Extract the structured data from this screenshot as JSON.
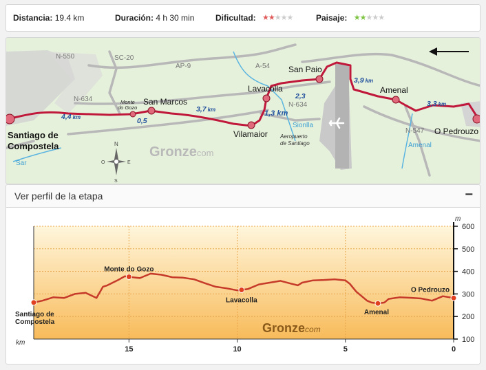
{
  "stats": {
    "distance_label": "Distancia:",
    "distance_value": "19.4 km",
    "duration_label": "Duración:",
    "duration_value": "4 h 30 min",
    "difficulty_label": "Dificultad:",
    "difficulty_rating": 2,
    "difficulty_max": 5,
    "difficulty_color": "#e05a5a",
    "landscape_label": "Paisaje:",
    "landscape_rating": 2,
    "landscape_max": 5,
    "landscape_color": "#7cc440",
    "star_off_color": "#cccccc"
  },
  "map": {
    "roads": {
      "n550": "N-550",
      "sc20": "SC-20",
      "ap9": "AP-9",
      "a54": "A-54",
      "n634_left": "N-634",
      "n634_right": "N-634",
      "n547": "N-547"
    },
    "rivers": {
      "sar": "Sar",
      "sionlla": "Sionlla",
      "amenal": "Amenal"
    },
    "places": {
      "santiago_line1": "Santiago de",
      "santiago_line2": "Compostela",
      "monte_line1": "Monte",
      "monte_line2": "do Gozo",
      "san_marcos": "San Marcos",
      "lavacolla": "Lavacolla",
      "san_paio": "San Paio",
      "vilamaior": "Vilamaior",
      "amenal": "Amenal",
      "pedrouzo": "O Pedrouzo"
    },
    "airport_line1": "Aeropuerto",
    "airport_line2": "de Santiago",
    "segments": {
      "s1": "4,4",
      "s2": "0,5",
      "s3": "3,7",
      "s4": "1,3 km",
      "s5": "2,3",
      "s6": "3,9",
      "s7": "3,3"
    },
    "unit": "km",
    "brand_main": "Gronze",
    "brand_suffix": "com",
    "compass": {
      "n": "N",
      "s": "S",
      "e": "E",
      "o": "O"
    },
    "route_color": "#c0183a",
    "segment_color": "#1f4f9c"
  },
  "profile": {
    "title": "Ver perfil de la etapa",
    "collapse_icon": "−",
    "brand_main": "Gronze",
    "brand_suffix": "com",
    "chart_data": {
      "type": "area",
      "xlabel": "km",
      "ylabel": "m",
      "xlim": [
        19.4,
        0
      ],
      "ylim": [
        100,
        600
      ],
      "x_ticks": [
        15,
        10,
        5,
        0
      ],
      "y_ticks": [
        100,
        200,
        300,
        400,
        500,
        600
      ],
      "x": [
        19.4,
        19.0,
        18.5,
        18.0,
        17.5,
        17.0,
        16.5,
        16.2,
        16.0,
        15.8,
        15.5,
        15.2,
        15.0,
        14.5,
        14.0,
        13.5,
        13.0,
        12.5,
        12.0,
        11.5,
        11.0,
        10.5,
        10.0,
        9.8,
        9.5,
        9.0,
        8.5,
        8.0,
        7.5,
        7.2,
        7.0,
        6.5,
        6.0,
        5.5,
        5.0,
        4.8,
        4.5,
        4.0,
        3.8,
        3.5,
        3.2,
        3.0,
        2.5,
        2.0,
        1.5,
        1.0,
        0.5,
        0.0
      ],
      "y": [
        262,
        270,
        285,
        282,
        300,
        305,
        282,
        332,
        338,
        348,
        362,
        378,
        376,
        370,
        390,
        385,
        374,
        372,
        365,
        348,
        332,
        325,
        316,
        318,
        322,
        342,
        350,
        358,
        345,
        338,
        350,
        360,
        362,
        365,
        360,
        345,
        310,
        270,
        262,
        258,
        262,
        278,
        285,
        283,
        280,
        270,
        290,
        282
      ],
      "waypoints": [
        {
          "name": "Santiago de Compostela",
          "km": 19.4,
          "elev": 262
        },
        {
          "name": "Monte do Gozo",
          "km": 15.0,
          "elev": 376
        },
        {
          "name": "Lavacolla",
          "km": 9.8,
          "elev": 318
        },
        {
          "name": "Amenal",
          "km": 3.5,
          "elev": 258
        },
        {
          "name": "O Pedrouzo",
          "km": 0.0,
          "elev": 282
        }
      ],
      "line_color": "#c63a2a",
      "fill_top": "#fff6dc",
      "fill_bottom": "#f8bb5a"
    },
    "labels": {
      "santiago_line1": "Santiago de",
      "santiago_line2": "Compostela",
      "monte": "Monte do Gozo",
      "lavacolla": "Lavacolla",
      "amenal": "Amenal",
      "pedrouzo": "O Pedrouzo"
    }
  }
}
